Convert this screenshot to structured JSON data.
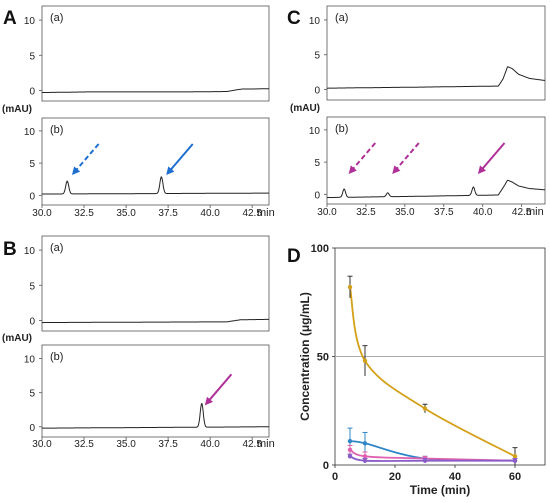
{
  "chart_data": [
    {
      "panel": "A",
      "type": "line",
      "xlabel": "min",
      "ylabel": "(mAU)",
      "xlim": [
        30.0,
        43.5
      ],
      "ylim": [
        -1.5,
        12
      ],
      "x_ticks": [
        "30.0",
        "32.5",
        "35.0",
        "37.5",
        "40.0",
        "42.5"
      ],
      "y_ticks": [
        "0",
        "5",
        "10"
      ],
      "subplots": [
        {
          "label": "(a)",
          "x": [
            30.0,
            33.0,
            36.0,
            39.0,
            41.0,
            41.6,
            41.9,
            42.4,
            43.5
          ],
          "y": [
            -0.3,
            -0.2,
            -0.2,
            -0.2,
            -0.15,
            0.1,
            0.2,
            0.2,
            0.25
          ],
          "peaks": []
        },
        {
          "label": "(b)",
          "x": [
            30.0,
            43.5
          ],
          "y": [
            0.2,
            0.35
          ],
          "peaks": [
            {
              "x": 31.5,
              "y": 2.0
            },
            {
              "x": 37.1,
              "y": 2.6
            }
          ],
          "arrows": [
            {
              "x": 31.7,
              "style": "dashed",
              "color": "#1f6fd1"
            },
            {
              "x": 37.3,
              "style": "solid",
              "color": "#1f6fd1"
            }
          ]
        }
      ]
    },
    {
      "panel": "B",
      "type": "line",
      "xlabel": "min",
      "ylabel": "(mAU)",
      "xlim": [
        30.0,
        43.5
      ],
      "ylim": [
        -1.5,
        12
      ],
      "x_ticks": [
        "30.0",
        "32.5",
        "35.0",
        "37.5",
        "40.0",
        "42.5"
      ],
      "y_ticks": [
        "0",
        "5",
        "10"
      ],
      "subplots": [
        {
          "label": "(a)",
          "x": [
            30.0,
            35.0,
            41.0,
            41.8,
            43.5
          ],
          "y": [
            -0.3,
            -0.25,
            -0.2,
            0.1,
            0.15
          ],
          "peaks": []
        },
        {
          "label": "(b)",
          "x": [
            30.0,
            43.5
          ],
          "y": [
            -0.2,
            0.0
          ],
          "peaks": [
            {
              "x": 39.5,
              "y": 3.5
            }
          ],
          "arrows": [
            {
              "x": 39.6,
              "style": "solid",
              "color": "#b0309a"
            }
          ]
        }
      ]
    },
    {
      "panel": "C",
      "type": "line",
      "xlabel": "min",
      "ylabel": "(mAU)",
      "xlim": [
        30.0,
        44.0
      ],
      "ylim": [
        -1.5,
        12
      ],
      "x_ticks": [
        "30.0",
        "32.5",
        "35.0",
        "37.5",
        "40.0",
        "42.5"
      ],
      "y_ticks": [
        "0",
        "5",
        "10"
      ],
      "subplots": [
        {
          "label": "(a)",
          "x": [
            30.0,
            36.0,
            41.0,
            41.3,
            41.6,
            41.9,
            42.3,
            43.0,
            44.0
          ],
          "y": [
            0.2,
            0.35,
            0.5,
            1.5,
            3.3,
            3.0,
            2.2,
            1.6,
            1.3
          ],
          "peaks": []
        },
        {
          "label": "(b)",
          "x": [
            30.0,
            36.0,
            41.0,
            41.3,
            41.6,
            41.9,
            42.3,
            43.0,
            44.0
          ],
          "y": [
            -0.5,
            -0.3,
            -0.1,
            1.0,
            2.2,
            1.9,
            1.3,
            0.9,
            0.7
          ],
          "peaks": [
            {
              "x": 31.1,
              "y": 1.3
            },
            {
              "x": 33.9,
              "y": 0.6
            },
            {
              "x": 39.4,
              "y": 1.3
            }
          ],
          "arrows": [
            {
              "x": 31.3,
              "style": "dashed",
              "color": "#b0309a"
            },
            {
              "x": 34.1,
              "style": "dashed",
              "color": "#b0309a"
            },
            {
              "x": 39.6,
              "style": "solid",
              "color": "#b0309a"
            }
          ]
        }
      ]
    },
    {
      "panel": "D",
      "type": "line",
      "xlabel": "Time (min)",
      "ylabel": "Concentration (μg/mL)",
      "xlim": [
        0,
        70
      ],
      "ylim": [
        0,
        100
      ],
      "x_ticks": [
        "0",
        "20",
        "40",
        "60"
      ],
      "y_ticks": [
        "0",
        "50",
        "100"
      ],
      "hline": 50,
      "series": [
        {
          "color": "#d4a017",
          "x": [
            5,
            10,
            30,
            60
          ],
          "y": [
            82,
            48,
            26,
            4
          ],
          "err": [
            5,
            7,
            2,
            4
          ]
        },
        {
          "color": "#2e86c8",
          "x": [
            5,
            10,
            30,
            60
          ],
          "y": [
            11,
            10,
            3,
            2
          ],
          "err": [
            6,
            5,
            1,
            1
          ]
        },
        {
          "color": "#e060b0",
          "x": [
            5,
            10,
            30,
            60
          ],
          "y": [
            7,
            4,
            3,
            2
          ],
          "err": [
            2,
            2,
            1,
            1
          ]
        },
        {
          "color": "#8a5cc8",
          "x": [
            5,
            10,
            30,
            60
          ],
          "y": [
            4,
            2,
            2,
            2
          ],
          "err": [
            1,
            1,
            1,
            1
          ]
        }
      ]
    }
  ]
}
